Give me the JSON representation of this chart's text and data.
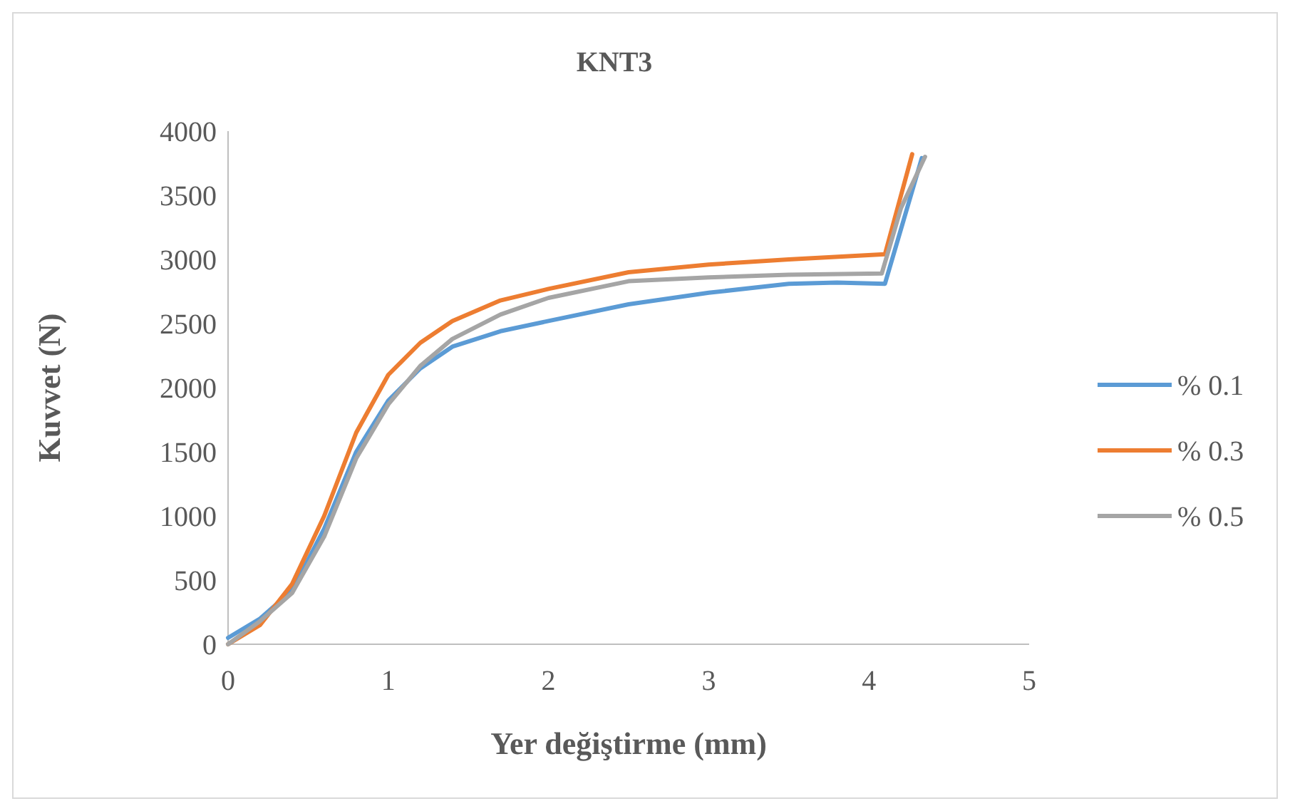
{
  "chart_data": {
    "type": "line",
    "title": "KNT3",
    "xlabel": "Yer değiştirme (mm)",
    "ylabel": "Kuvvet (N)",
    "xlim": [
      0,
      5
    ],
    "xticks": [
      0,
      1,
      2,
      3,
      4,
      5
    ],
    "ylim": [
      0,
      4000
    ],
    "yticks": [
      0,
      500,
      1000,
      1500,
      2000,
      2500,
      3000,
      3500,
      4000
    ],
    "grid": false,
    "legend": "right",
    "marker": "none",
    "line_style": "solid",
    "series": [
      {
        "name": "% 0.1",
        "color": "#5b9bd5",
        "x": [
          0,
          0.2,
          0.4,
          0.6,
          0.8,
          1.0,
          1.2,
          1.4,
          1.7,
          2.0,
          2.5,
          3.0,
          3.5,
          3.8,
          4.1,
          4.33
        ],
        "values": [
          50,
          200,
          420,
          900,
          1500,
          1900,
          2150,
          2320,
          2440,
          2520,
          2650,
          2740,
          2810,
          2820,
          2810,
          3790
        ]
      },
      {
        "name": "% 0.3",
        "color": "#ed7d31",
        "x": [
          0,
          0.2,
          0.4,
          0.6,
          0.8,
          1.0,
          1.2,
          1.4,
          1.7,
          2.0,
          2.5,
          3.0,
          3.5,
          4.1,
          4.27
        ],
        "values": [
          0,
          150,
          470,
          1000,
          1650,
          2100,
          2350,
          2520,
          2680,
          2770,
          2900,
          2960,
          3000,
          3040,
          3820
        ]
      },
      {
        "name": "% 0.5",
        "color": "#a5a5a5",
        "x": [
          0,
          0.2,
          0.4,
          0.6,
          0.8,
          1.0,
          1.2,
          1.4,
          1.7,
          2.0,
          2.5,
          3.0,
          3.5,
          4.08,
          4.2,
          4.35
        ],
        "values": [
          0,
          180,
          400,
          840,
          1450,
          1870,
          2170,
          2380,
          2570,
          2700,
          2830,
          2860,
          2880,
          2890,
          3400,
          3800
        ]
      }
    ]
  }
}
